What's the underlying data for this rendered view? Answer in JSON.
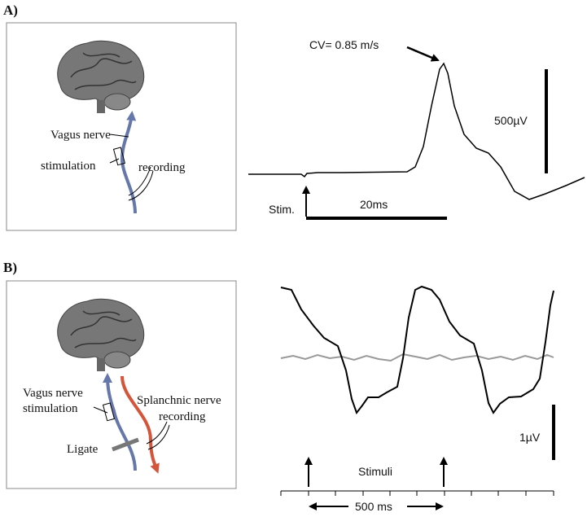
{
  "panels": [
    {
      "label": "A)",
      "diagram": {
        "nerve_label": "Vagus nerve",
        "stimulation_label": "stimulation",
        "recording_label": "recording"
      },
      "trace": {
        "annotation": "CV= 0.85 m/s",
        "amplitude_scale": "500µV",
        "stimulus_label": "Stim.",
        "time_scale": "20ms"
      }
    },
    {
      "label": "B)",
      "diagram": {
        "stimulation_label_lines": [
          "Vagus nerve",
          "stimulation"
        ],
        "recording_label_lines": [
          "Splanchnic nerve",
          "recording"
        ],
        "ligate_label": "Ligate"
      },
      "trace": {
        "amplitude_scale": "1µV",
        "stimulus_label": "Stimuli",
        "time_scale": "500 ms"
      }
    }
  ]
}
